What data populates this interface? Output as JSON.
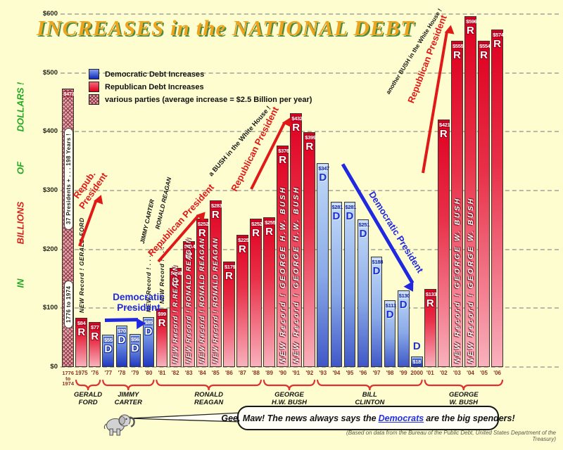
{
  "title": "INCREASES in the NATIONAL DEBT",
  "colors": {
    "background": "#FDFDCF",
    "republican": "#DE0020",
    "democratic": "#2038C0",
    "various_parties": "#E4A4AC",
    "title_gold": "#EFA41F",
    "title_shadow_green": "#4E8A3E",
    "annotation_red": "#E01818",
    "annotation_blue": "#2028E0",
    "brace_red": "#E03030"
  },
  "legend": {
    "items": [
      {
        "swatch": "dem",
        "label": "Democratic Debt Increases"
      },
      {
        "swatch": "rep",
        "label": "Republican Debt Increases"
      },
      {
        "swatch": "var",
        "label": "various parties (average increase = $2.5 Billion per year)"
      }
    ]
  },
  "chart_data": {
    "type": "bar",
    "title": "INCREASES in the NATIONAL DEBT",
    "ylabel": "IN BILLIONS OF DOLLARS !",
    "ylabel_words": [
      {
        "text": "IN",
        "color": "#22A822"
      },
      {
        "text": "BILLIONS",
        "color": "#D82020"
      },
      {
        "text": "OF",
        "color": "#22A822"
      },
      {
        "text": "DOLLARS !",
        "color": "#22A822"
      }
    ],
    "unit": "billions of dollars",
    "ylim": [
      0,
      600
    ],
    "y_ticks": [
      "$0",
      "$100",
      "$200",
      "$300",
      "$400",
      "$500",
      "$600"
    ],
    "grid": "dashed horizontal",
    "bars": [
      {
        "year": "1776|to|1974",
        "value": 473,
        "party": "V",
        "value_label": "$473",
        "inside_labels": [
          "37 Presidents +  . . .  198 Years !",
          "1776  to  1974"
        ]
      },
      {
        "year": "1975",
        "value": 84,
        "party": "R",
        "record": "NEW Record !  GERALD FORD",
        "record_pos": "above"
      },
      {
        "year": "'76",
        "value": 77,
        "party": "R"
      },
      {
        "year": "'77",
        "value": 55,
        "party": "D"
      },
      {
        "year": "'78",
        "value": 70,
        "party": "D"
      },
      {
        "year": "'79",
        "value": 56,
        "party": "D"
      },
      {
        "year": "'80",
        "value": 85,
        "party": "D",
        "record": "NEW Record !  . . . .",
        "record_pos": "above"
      },
      {
        "year": "'81",
        "value": 99,
        "party": "R",
        "record": "NEW Record !  . . . .",
        "record_pos": "above"
      },
      {
        "year": "'82",
        "value": 168,
        "party": "R",
        "record": "NEW Record !  R.REAGAN",
        "record_pos": "on"
      },
      {
        "year": "'83",
        "value": 214,
        "party": "R",
        "record": "NEW Record !  RONALD REAGAN",
        "record_pos": "on"
      },
      {
        "year": "'84",
        "value": 252,
        "party": "R",
        "record": "NEW Record !  RONALD REAGAN",
        "record_pos": "on"
      },
      {
        "year": "'85",
        "value": 283,
        "party": "R",
        "record": "NEW Record !  RONALD REAGAN",
        "record_pos": "on"
      },
      {
        "year": "'86",
        "value": 179,
        "party": "R"
      },
      {
        "year": "'87",
        "value": 225,
        "party": "R"
      },
      {
        "year": "'88",
        "value": 252,
        "party": "R"
      },
      {
        "year": "'89",
        "value": 255,
        "party": "R"
      },
      {
        "year": "'90",
        "value": 376,
        "party": "R",
        "record": "NEW Record !  GEORGE H.W. BUSH",
        "record_pos": "on",
        "stretch": true
      },
      {
        "year": "'91",
        "value": 432,
        "party": "R",
        "record": "NEW Record !  GEORGE H.W. BUSH",
        "record_pos": "on",
        "stretch": true
      },
      {
        "year": "'92",
        "value": 399,
        "party": "R"
      },
      {
        "year": "'93",
        "value": 347,
        "party": "D",
        "light": true
      },
      {
        "year": "'94",
        "value": 281,
        "party": "D",
        "light": true
      },
      {
        "year": "'95",
        "value": 281,
        "party": "D",
        "light": true
      },
      {
        "year": "'96",
        "value": 251,
        "party": "D",
        "light": true
      },
      {
        "year": "'97",
        "value": 188,
        "party": "D",
        "light": true
      },
      {
        "year": "'98",
        "value": 113,
        "party": "D",
        "light": true
      },
      {
        "year": "'99",
        "value": 130,
        "party": "D",
        "light": true
      },
      {
        "year": "2000",
        "value": 18,
        "party": "D",
        "letter_above": true
      },
      {
        "year": "'01",
        "value": 133,
        "party": "R"
      },
      {
        "year": "'02",
        "value": 421,
        "party": "R"
      },
      {
        "year": "'03",
        "value": 555,
        "party": "R",
        "record": "NEW Record !  GEORGE W. BUSH",
        "record_pos": "on",
        "stretch": true
      },
      {
        "year": "'04",
        "value": 596,
        "party": "R",
        "record": "NEW Record !  GEORGE W. BUSH",
        "record_pos": "on",
        "stretch": true
      },
      {
        "year": "'05",
        "value": 554,
        "party": "R"
      },
      {
        "year": "'06",
        "value": 574,
        "party": "R"
      }
    ],
    "presidents": [
      {
        "name_lines": [
          "GERALD",
          "FORD"
        ],
        "start": 1,
        "end": 2
      },
      {
        "name_lines": [
          "JIMMY",
          "CARTER"
        ],
        "start": 3,
        "end": 6
      },
      {
        "name_lines": [
          "RONALD",
          "REAGAN"
        ],
        "start": 7,
        "end": 14
      },
      {
        "name_lines": [
          "GEORGE",
          "H.W. BUSH"
        ],
        "start": 15,
        "end": 18
      },
      {
        "name_lines": [
          "BILL",
          "CLINTON"
        ],
        "start": 19,
        "end": 26
      },
      {
        "name_lines": [
          "GEORGE",
          "W. BUSH"
        ],
        "start": 27,
        "end": 32
      }
    ]
  },
  "annotations": {
    "ford_republican": {
      "text": "Repub. President"
    },
    "carter_democratic": {
      "text": "Democratic President"
    },
    "carter_name": {
      "text": "JIMMY CARTER"
    },
    "reagan_name": {
      "text": "RONALD REAGAN"
    },
    "reagan_republican": {
      "text": "Republican President"
    },
    "hw_bush_house": {
      "text": "a BUSH in the White House !"
    },
    "hw_republican": {
      "text": "Republican President"
    },
    "clinton_democratic": {
      "text": "Democratic President"
    },
    "w_bush_house": {
      "text": "another BUSH in the White House !"
    },
    "w_republican": {
      "text": "Republican President"
    }
  },
  "speech_bubble": {
    "text_before": "Gee, Maw! The news always says the",
    "highlight": "Democrats",
    "text_after": "are the big spenders!"
  },
  "source_note": "(Based on data from the Bureau of the Public Debt, United States Department of the Treasury)"
}
